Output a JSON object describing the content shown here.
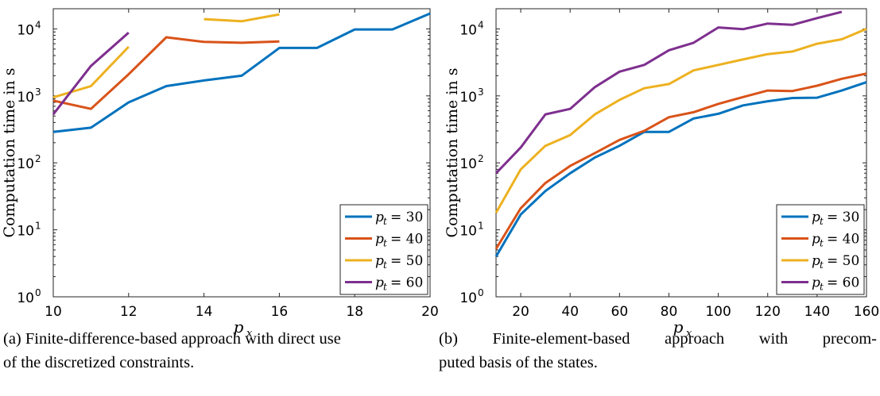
{
  "chart_data": [
    {
      "type": "line",
      "ylabel": "Computation time in s",
      "xlabel": "p",
      "xlabel_sub": "x",
      "yscale": "log",
      "xlim": [
        10,
        20
      ],
      "ylim": [
        1,
        20000
      ],
      "xticks": [
        10,
        12,
        14,
        16,
        18,
        20
      ],
      "yticks": [
        {
          "value": 1,
          "base": "10",
          "exp": "0"
        },
        {
          "value": 10,
          "base": "10",
          "exp": "1"
        },
        {
          "value": 100,
          "base": "10",
          "exp": "2"
        },
        {
          "value": 1000,
          "base": "10",
          "exp": "3"
        },
        {
          "value": 10000,
          "base": "10",
          "exp": "4"
        }
      ],
      "legend_position": "bottom-right",
      "series": [
        {
          "name": "p_t = 30",
          "legend_var": "p",
          "legend_sub": "t",
          "legend_val": "= 30",
          "color": "#0072BD",
          "points": [
            [
              10,
              290
            ],
            [
              11,
              335
            ],
            [
              12,
              800
            ],
            [
              13,
              1400
            ],
            [
              14,
              1700
            ],
            [
              15,
              2000
            ],
            [
              16,
              5200
            ],
            [
              17,
              5200
            ],
            [
              18,
              9800
            ],
            [
              19,
              9800
            ],
            [
              20,
              17000
            ]
          ]
        },
        {
          "name": "p_t = 40",
          "legend_var": "p",
          "legend_sub": "t",
          "legend_val": "= 40",
          "color": "#D95319",
          "points": [
            [
              10,
              850
            ],
            [
              11,
              640
            ],
            [
              12,
              2100
            ],
            [
              13,
              7500
            ],
            [
              14,
              6400
            ],
            [
              15,
              6200
            ],
            [
              16,
              6500
            ]
          ]
        },
        {
          "name": "p_t = 50",
          "legend_var": "p",
          "legend_sub": "t",
          "legend_val": "= 50",
          "color": "#EDB120",
          "points": [
            [
              10,
              950
            ],
            [
              11,
              1400
            ],
            [
              12,
              5400
            ],
            null,
            [
              14,
              14000
            ],
            [
              15,
              13000
            ],
            [
              16,
              16500
            ]
          ]
        },
        {
          "name": "p_t = 60",
          "legend_var": "p",
          "legend_sub": "t",
          "legend_val": "= 60",
          "color": "#7E2F8E",
          "points": [
            [
              10,
              530
            ],
            [
              11,
              2800
            ],
            [
              12,
              8800
            ]
          ]
        }
      ]
    },
    {
      "type": "line",
      "ylabel": "Computation time in s",
      "xlabel": "p",
      "xlabel_sub": "x",
      "yscale": "log",
      "xlim": [
        10,
        160
      ],
      "ylim": [
        1,
        20000
      ],
      "xticks": [
        20,
        40,
        60,
        80,
        100,
        120,
        140,
        160
      ],
      "yticks": [
        {
          "value": 1,
          "base": "10",
          "exp": "0"
        },
        {
          "value": 10,
          "base": "10",
          "exp": "1"
        },
        {
          "value": 100,
          "base": "10",
          "exp": "2"
        },
        {
          "value": 1000,
          "base": "10",
          "exp": "3"
        },
        {
          "value": 10000,
          "base": "10",
          "exp": "4"
        }
      ],
      "legend_position": "bottom-right",
      "series": [
        {
          "name": "p_t = 30",
          "legend_var": "p",
          "legend_sub": "t",
          "legend_val": "= 30",
          "color": "#0072BD",
          "points": [
            [
              10,
              4
            ],
            [
              20,
              17
            ],
            [
              30,
              38
            ],
            [
              40,
              70
            ],
            [
              50,
              120
            ],
            [
              60,
              180
            ],
            [
              70,
              290
            ],
            [
              80,
              290
            ],
            [
              90,
              460
            ],
            [
              100,
              540
            ],
            [
              110,
              720
            ],
            [
              120,
              830
            ],
            [
              130,
              930
            ],
            [
              140,
              940
            ],
            [
              150,
              1200
            ],
            [
              160,
              1600
            ]
          ]
        },
        {
          "name": "p_t = 40",
          "legend_var": "p",
          "legend_sub": "t",
          "legend_val": "= 40",
          "color": "#D95319",
          "points": [
            [
              10,
              5.2
            ],
            [
              20,
              21
            ],
            [
              30,
              50
            ],
            [
              40,
              90
            ],
            [
              50,
              140
            ],
            [
              60,
              220
            ],
            [
              70,
              300
            ],
            [
              80,
              480
            ],
            [
              90,
              570
            ],
            [
              100,
              760
            ],
            [
              110,
              960
            ],
            [
              120,
              1200
            ],
            [
              130,
              1180
            ],
            [
              140,
              1420
            ],
            [
              150,
              1800
            ],
            [
              160,
              2150
            ]
          ]
        },
        {
          "name": "p_t = 50",
          "legend_var": "p",
          "legend_sub": "t",
          "legend_val": "= 50",
          "color": "#EDB120",
          "points": [
            [
              10,
              18
            ],
            [
              20,
              80
            ],
            [
              30,
              180
            ],
            [
              40,
              260
            ],
            [
              50,
              530
            ],
            [
              60,
              870
            ],
            [
              70,
              1300
            ],
            [
              80,
              1500
            ],
            [
              90,
              2400
            ],
            [
              100,
              2900
            ],
            [
              110,
              3500
            ],
            [
              120,
              4200
            ],
            [
              130,
              4600
            ],
            [
              140,
              6000
            ],
            [
              150,
              7000
            ],
            [
              160,
              10000
            ]
          ]
        },
        {
          "name": "p_t = 60",
          "legend_var": "p",
          "legend_sub": "t",
          "legend_val": "= 60",
          "color": "#7E2F8E",
          "points": [
            [
              10,
              70
            ],
            [
              20,
              170
            ],
            [
              30,
              530
            ],
            [
              40,
              640
            ],
            [
              50,
              1350
            ],
            [
              60,
              2300
            ],
            [
              70,
              2900
            ],
            [
              80,
              4800
            ],
            [
              90,
              6200
            ],
            [
              100,
              10500
            ],
            [
              110,
              9900
            ],
            [
              120,
              12000
            ],
            [
              130,
              11500
            ],
            [
              140,
              14500
            ],
            [
              150,
              18000
            ]
          ]
        }
      ]
    }
  ],
  "captions": {
    "a_line1": "(a) Finite-difference-based approach with direct use",
    "a_line2": "of the discretized constraints.",
    "b_line1": "(b) Finite-element-based approach with precom-",
    "b_line2": "puted basis of the states."
  }
}
